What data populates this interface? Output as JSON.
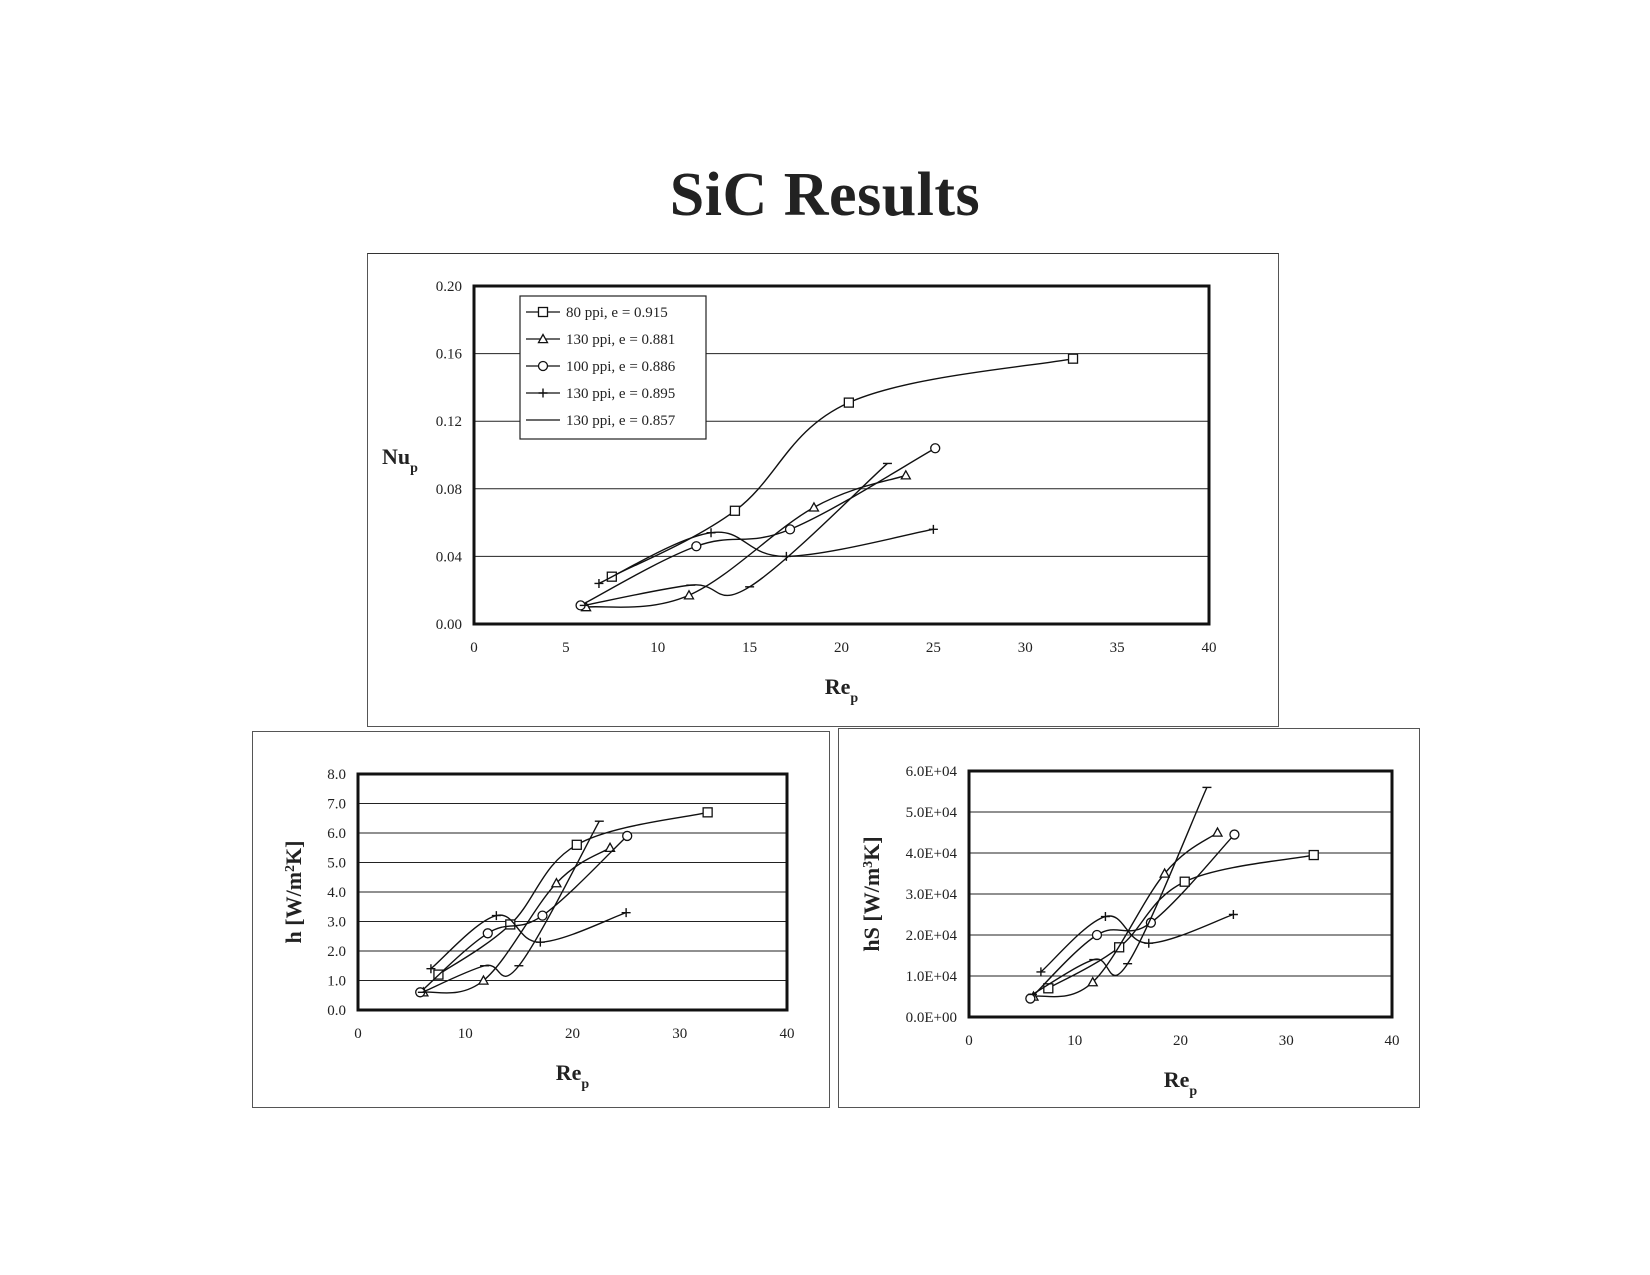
{
  "page": {
    "title": "SiC Results"
  },
  "legend": [
    {
      "label": "80 ppi, e = 0.915",
      "marker": "square"
    },
    {
      "label": "130 ppi, e = 0.881",
      "marker": "triangle"
    },
    {
      "label": "100 ppi, e = 0.886",
      "marker": "circle"
    },
    {
      "label": "130 ppi, e = 0.895",
      "marker": "plus"
    },
    {
      "label": "130 ppi, e = 0.857",
      "marker": "none"
    }
  ],
  "chart_data": [
    {
      "id": "nu",
      "type": "scatter",
      "title": "",
      "xlabel": "Re",
      "xlabel_sub": "p",
      "ylabel": "Nu",
      "ylabel_sub": "p",
      "xlim": [
        0,
        40
      ],
      "ylim": [
        0,
        0.2
      ],
      "xticks": [
        "0",
        "5",
        "10",
        "15",
        "20",
        "25",
        "30",
        "35",
        "40"
      ],
      "yticks": [
        "0.00",
        "0.04",
        "0.08",
        "0.12",
        "0.16",
        "0.20"
      ],
      "grid": "horizontal",
      "legend_position": "top-left",
      "series": [
        {
          "name": "80 ppi, e = 0.915",
          "marker": "square",
          "x": [
            7.5,
            14.2,
            20.4,
            32.6
          ],
          "y": [
            0.028,
            0.067,
            0.131,
            0.157
          ]
        },
        {
          "name": "130 ppi, e = 0.881",
          "marker": "triangle",
          "x": [
            6.1,
            11.7,
            18.5,
            23.5
          ],
          "y": [
            0.01,
            0.017,
            0.069,
            0.088
          ]
        },
        {
          "name": "100 ppi, e = 0.886",
          "marker": "circle",
          "x": [
            5.8,
            12.1,
            17.2,
            25.1
          ],
          "y": [
            0.011,
            0.046,
            0.056,
            0.104
          ]
        },
        {
          "name": "130 ppi, e = 0.895",
          "marker": "plus",
          "x": [
            6.8,
            12.9,
            17.0,
            25.0
          ],
          "y": [
            0.024,
            0.054,
            0.04,
            0.056
          ]
        },
        {
          "name": "130 ppi, e = 0.857",
          "marker": "none",
          "x": [
            6.0,
            11.8,
            15.0,
            22.5
          ],
          "y": [
            0.011,
            0.023,
            0.022,
            0.095
          ]
        }
      ]
    },
    {
      "id": "h",
      "type": "scatter",
      "title": "",
      "xlabel": "Re",
      "xlabel_sub": "p",
      "ylabel": "h [W/m",
      "ylabel_sup": "2",
      "ylabel_end": "K]",
      "xlim": [
        0,
        40
      ],
      "ylim": [
        0,
        8
      ],
      "xticks": [
        "0",
        "10",
        "20",
        "30",
        "40"
      ],
      "yticks": [
        "0.0",
        "1.0",
        "2.0",
        "3.0",
        "4.0",
        "5.0",
        "6.0",
        "7.0",
        "8.0"
      ],
      "grid": "horizontal",
      "series": [
        {
          "name": "80 ppi, e = 0.915",
          "marker": "square",
          "x": [
            7.5,
            14.2,
            20.4,
            32.6
          ],
          "y": [
            1.2,
            2.9,
            5.6,
            6.7
          ]
        },
        {
          "name": "130 ppi, e = 0.881",
          "marker": "triangle",
          "x": [
            6.1,
            11.7,
            18.5,
            23.5
          ],
          "y": [
            0.6,
            1.0,
            4.3,
            5.5
          ]
        },
        {
          "name": "100 ppi, e = 0.886",
          "marker": "circle",
          "x": [
            5.8,
            12.1,
            17.2,
            25.1
          ],
          "y": [
            0.6,
            2.6,
            3.2,
            5.9
          ]
        },
        {
          "name": "130 ppi, e = 0.895",
          "marker": "plus",
          "x": [
            6.8,
            12.9,
            17.0,
            25.0
          ],
          "y": [
            1.4,
            3.2,
            2.3,
            3.3
          ]
        },
        {
          "name": "130 ppi, e = 0.857",
          "marker": "none",
          "x": [
            6.0,
            11.8,
            15.0,
            22.5
          ],
          "y": [
            0.6,
            1.5,
            1.5,
            6.4
          ]
        }
      ]
    },
    {
      "id": "hs",
      "type": "scatter",
      "title": "",
      "xlabel": "Re",
      "xlabel_sub": "p",
      "ylabel": "hS [W/m",
      "ylabel_sup": "3",
      "ylabel_end": "K]",
      "xlim": [
        0,
        40
      ],
      "ylim": [
        0,
        60000
      ],
      "xticks": [
        "0",
        "10",
        "20",
        "30",
        "40"
      ],
      "yticks": [
        "0.0E+00",
        "1.0E+04",
        "2.0E+04",
        "3.0E+04",
        "4.0E+04",
        "5.0E+04",
        "6.0E+04"
      ],
      "grid": "horizontal",
      "series": [
        {
          "name": "80 ppi, e = 0.915",
          "marker": "square",
          "x": [
            7.5,
            14.2,
            20.4,
            32.6
          ],
          "y": [
            7000,
            17000,
            33000,
            39500
          ]
        },
        {
          "name": "130 ppi, e = 0.881",
          "marker": "triangle",
          "x": [
            6.1,
            11.7,
            18.5,
            23.5
          ],
          "y": [
            5000,
            8500,
            35000,
            45000
          ]
        },
        {
          "name": "100 ppi, e = 0.886",
          "marker": "circle",
          "x": [
            5.8,
            12.1,
            17.2,
            25.1
          ],
          "y": [
            4500,
            20000,
            23000,
            44500
          ]
        },
        {
          "name": "130 ppi, e = 0.895",
          "marker": "plus",
          "x": [
            6.8,
            12.9,
            17.0,
            25.0
          ],
          "y": [
            11000,
            24500,
            18000,
            25000
          ]
        },
        {
          "name": "130 ppi, e = 0.857",
          "marker": "none",
          "x": [
            6.0,
            11.8,
            15.0,
            22.5
          ],
          "y": [
            5500,
            14000,
            13000,
            56000
          ]
        }
      ]
    }
  ]
}
